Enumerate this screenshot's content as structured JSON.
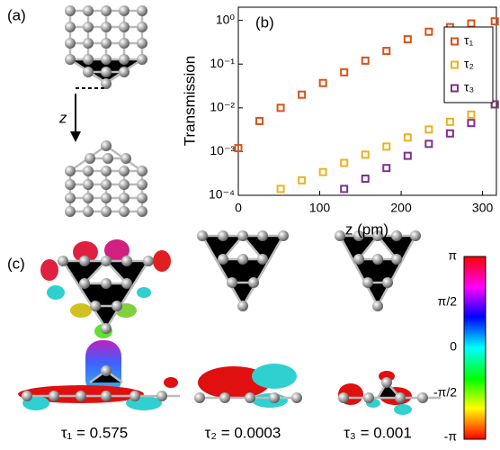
{
  "panels": {
    "a": "(a)",
    "b": "(b)",
    "c": "(c)"
  },
  "arrow_label": "z",
  "transmissions": [
    "τ₁ = 0.575",
    "τ₂ = 0.0003",
    "τ₃ = 0.001"
  ],
  "colorbar_ticks": [
    "π",
    "π/2",
    "0",
    "-π/2",
    "-π"
  ],
  "chart_data": {
    "type": "scatter",
    "x_label": "z (pm)",
    "y_label": "Transmission",
    "x": [
      0,
      26,
      52,
      78,
      104,
      130,
      156,
      182,
      208,
      234,
      260,
      286,
      315
    ],
    "series": [
      {
        "name": "τ₁",
        "color": "#d95319",
        "values": [
          0.0012,
          0.005,
          0.01,
          0.02,
          0.037,
          0.065,
          0.12,
          0.2,
          0.37,
          0.55,
          0.7,
          0.85,
          0.95
        ]
      },
      {
        "name": "τ₂",
        "color": "#edb120",
        "values": [
          null,
          null,
          0.00014,
          0.00022,
          0.00034,
          0.00055,
          0.00085,
          0.0013,
          0.0021,
          0.0032,
          0.0048,
          0.007,
          0.012
        ]
      },
      {
        "name": "τ₃",
        "color": "#7e2f8e",
        "values": [
          null,
          null,
          null,
          null,
          null,
          0.00014,
          0.00024,
          0.00042,
          0.0008,
          0.0015,
          0.0026,
          0.0045,
          0.012
        ]
      }
    ],
    "xlim": [
      0,
      317
    ],
    "xticks": [
      0,
      100,
      200,
      300
    ],
    "ylim": [
      0.0001,
      2
    ],
    "yscale": "log",
    "yticks": [
      {
        "value": 0.0001,
        "label": "10⁻⁴"
      },
      {
        "value": 0.001,
        "label": "10⁻³"
      },
      {
        "value": 0.01,
        "label": "10⁻²"
      },
      {
        "value": 0.1,
        "label": "10⁻¹"
      },
      {
        "value": 1,
        "label": "10⁰"
      }
    ],
    "legend": "upper right"
  }
}
